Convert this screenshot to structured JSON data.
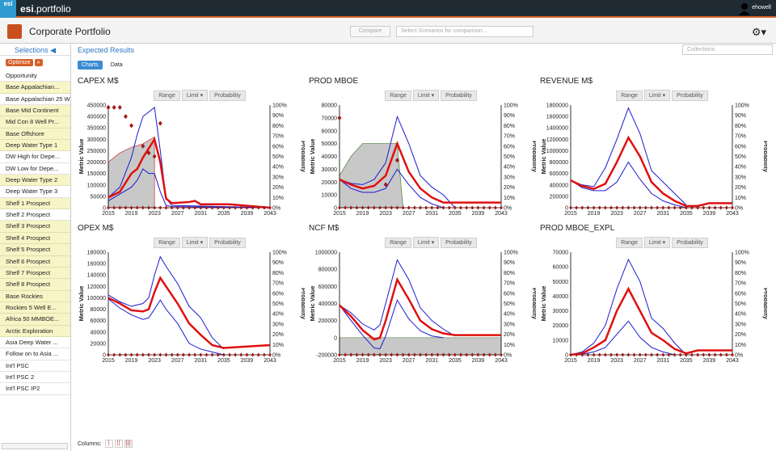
{
  "app": {
    "logo": "esi",
    "brand_bold": "esi",
    "brand": ".portfolio",
    "user": "ehowell"
  },
  "header": {
    "title": "Corporate Portfolio",
    "compare": "Compare",
    "scenario_placeholder": "Select Scenarios for comparison..."
  },
  "sidebar": {
    "title": "Selections",
    "optimize": "Optimize",
    "opportunity": "Opportunity",
    "items": [
      {
        "label": "Base Appalachian...",
        "sel": true
      },
      {
        "label": "Base Appalachian 25 W...",
        "sel": false
      },
      {
        "label": "Base Mid Continent",
        "sel": true
      },
      {
        "label": "Mid Con 8 Well Pr...",
        "sel": true
      },
      {
        "label": "Base Offshore",
        "sel": true
      },
      {
        "label": "Deep Water Type 1",
        "sel": true
      },
      {
        "label": "DW High for Depe...",
        "sel": false
      },
      {
        "label": "DW Low for Depe...",
        "sel": false
      },
      {
        "label": "Deep Water Type 2",
        "sel": true
      },
      {
        "label": "Deep Water Type 3",
        "sel": false
      },
      {
        "label": "Shelf 1 Prospect",
        "sel": true
      },
      {
        "label": "Shelf 2 Prospect",
        "sel": false
      },
      {
        "label": "Shelf 3 Prospect",
        "sel": true
      },
      {
        "label": "Shelf 4 Prospect",
        "sel": true
      },
      {
        "label": "Shelf 5 Prospect",
        "sel": true
      },
      {
        "label": "Shelf 6 Prospect",
        "sel": true
      },
      {
        "label": "Shelf 7 Prospect",
        "sel": true
      },
      {
        "label": "Shelf 8 Prospect",
        "sel": true
      },
      {
        "label": "Base Rockies",
        "sel": true
      },
      {
        "label": "Rockies 5 Well E...",
        "sel": true
      },
      {
        "label": "Africa 50 MMBOE...",
        "sel": true
      },
      {
        "label": "Arctic Exploration",
        "sel": true
      },
      {
        "label": "Asia Deep Water ...",
        "sel": false
      },
      {
        "label": "Follow on to Asia ...",
        "sel": false
      },
      {
        "label": "Int'l PSC",
        "sel": false
      },
      {
        "label": "Int'l PSC 2",
        "sel": false
      },
      {
        "label": "Int'l PSC IP2",
        "sel": false
      }
    ]
  },
  "main": {
    "title": "Expected Results",
    "collections": "Collections",
    "tabs": [
      "Charts",
      "Data"
    ],
    "columns_label": "Columns:"
  },
  "controls": {
    "range": "Range",
    "limit": "Limit",
    "probability": "Probability"
  },
  "axis": {
    "ylabel": "Metric Value",
    "y2label": "Probability"
  },
  "chart_data": [
    {
      "title": "CAPEX M$",
      "x": [
        2015,
        2019,
        2023,
        2027,
        2031,
        2035,
        2039,
        2043
      ],
      "yticks": [
        "0",
        "50000",
        "100000",
        "150000",
        "200000",
        "250000",
        "300000",
        "350000",
        "400000",
        "450000"
      ],
      "ymax": 450000,
      "ymin": 0,
      "mean": [
        [
          2015,
          45000
        ],
        [
          2017,
          70000
        ],
        [
          2019,
          150000
        ],
        [
          2020,
          170000
        ],
        [
          2021,
          220000
        ],
        [
          2022,
          260000
        ],
        [
          2023,
          300000
        ],
        [
          2024,
          200000
        ],
        [
          2025,
          40000
        ],
        [
          2026,
          20000
        ],
        [
          2029,
          25000
        ],
        [
          2030,
          30000
        ],
        [
          2031,
          15000
        ],
        [
          2036,
          15000
        ],
        [
          2043,
          0
        ]
      ],
      "p90": [
        [
          2015,
          45000
        ],
        [
          2017,
          90000
        ],
        [
          2019,
          220000
        ],
        [
          2020,
          320000
        ],
        [
          2021,
          400000
        ],
        [
          2022,
          420000
        ],
        [
          2023,
          440000
        ],
        [
          2024,
          250000
        ],
        [
          2025,
          40000
        ],
        [
          2026,
          10000
        ],
        [
          2043,
          0
        ]
      ],
      "p10": [
        [
          2015,
          30000
        ],
        [
          2017,
          60000
        ],
        [
          2019,
          90000
        ],
        [
          2020,
          120000
        ],
        [
          2021,
          170000
        ],
        [
          2022,
          150000
        ],
        [
          2023,
          150000
        ],
        [
          2024,
          70000
        ],
        [
          2025,
          10000
        ],
        [
          2026,
          5000
        ],
        [
          2043,
          0
        ]
      ],
      "area": [
        [
          2015,
          200000
        ],
        [
          2017,
          240000
        ],
        [
          2019,
          265000
        ],
        [
          2021,
          280000
        ],
        [
          2023,
          310000
        ]
      ],
      "points": [
        [
          2015,
          440000
        ],
        [
          2016,
          440000
        ],
        [
          2017,
          440000
        ],
        [
          2018,
          400000
        ],
        [
          2019,
          360000
        ],
        [
          2021,
          270000
        ],
        [
          2022,
          240000
        ],
        [
          2023,
          225000
        ],
        [
          2024,
          370000
        ]
      ]
    },
    {
      "title": "PROD MBOE",
      "x": [
        2015,
        2019,
        2023,
        2027,
        2031,
        2035,
        2039,
        2043
      ],
      "yticks": [
        "0",
        "10000",
        "20000",
        "30000",
        "40000",
        "50000",
        "60000",
        "70000",
        "80000"
      ],
      "ymax": 80000,
      "ymin": 0,
      "mean": [
        [
          2015,
          22000
        ],
        [
          2017,
          18000
        ],
        [
          2019,
          15000
        ],
        [
          2021,
          17000
        ],
        [
          2023,
          25000
        ],
        [
          2025,
          50000
        ],
        [
          2027,
          28000
        ],
        [
          2029,
          15000
        ],
        [
          2031,
          8000
        ],
        [
          2033,
          4000
        ],
        [
          2043,
          4000
        ]
      ],
      "p90": [
        [
          2015,
          22000
        ],
        [
          2017,
          19000
        ],
        [
          2019,
          18000
        ],
        [
          2021,
          22000
        ],
        [
          2023,
          35000
        ],
        [
          2025,
          71000
        ],
        [
          2027,
          50000
        ],
        [
          2029,
          25000
        ],
        [
          2031,
          16000
        ],
        [
          2033,
          10000
        ],
        [
          2035,
          0
        ]
      ],
      "p10": [
        [
          2015,
          22000
        ],
        [
          2017,
          15000
        ],
        [
          2019,
          12000
        ],
        [
          2021,
          12000
        ],
        [
          2023,
          15000
        ],
        [
          2025,
          30000
        ],
        [
          2027,
          18000
        ],
        [
          2029,
          8000
        ],
        [
          2031,
          3000
        ],
        [
          2033,
          0
        ]
      ],
      "area": [
        [
          2015,
          25000
        ],
        [
          2017,
          40000
        ],
        [
          2019,
          50000
        ],
        [
          2021,
          50000
        ],
        [
          2023,
          50000
        ],
        [
          2025,
          50000
        ],
        [
          2026,
          0
        ]
      ],
      "points": [
        [
          2015,
          70000
        ],
        [
          2023,
          18000
        ],
        [
          2025,
          37000
        ]
      ]
    },
    {
      "title": "REVENUE M$",
      "x": [
        2015,
        2019,
        2023,
        2027,
        2031,
        2035,
        2039,
        2043
      ],
      "yticks": [
        "0",
        "200000",
        "400000",
        "600000",
        "800000",
        "1000000",
        "1200000",
        "1400000",
        "1600000",
        "1800000"
      ],
      "ymax": 1800000,
      "ymin": 0,
      "mean": [
        [
          2015,
          480000
        ],
        [
          2017,
          380000
        ],
        [
          2019,
          330000
        ],
        [
          2021,
          420000
        ],
        [
          2023,
          800000
        ],
        [
          2025,
          1230000
        ],
        [
          2027,
          900000
        ],
        [
          2029,
          450000
        ],
        [
          2031,
          250000
        ],
        [
          2033,
          120000
        ],
        [
          2035,
          30000
        ],
        [
          2037,
          30000
        ],
        [
          2039,
          80000
        ],
        [
          2043,
          80000
        ]
      ],
      "p90": [
        [
          2015,
          480000
        ],
        [
          2017,
          400000
        ],
        [
          2019,
          370000
        ],
        [
          2021,
          700000
        ],
        [
          2023,
          1200000
        ],
        [
          2025,
          1750000
        ],
        [
          2027,
          1300000
        ],
        [
          2029,
          650000
        ],
        [
          2031,
          450000
        ],
        [
          2033,
          250000
        ],
        [
          2035,
          50000
        ]
      ],
      "p10": [
        [
          2015,
          480000
        ],
        [
          2017,
          350000
        ],
        [
          2019,
          300000
        ],
        [
          2021,
          300000
        ],
        [
          2023,
          450000
        ],
        [
          2025,
          800000
        ],
        [
          2027,
          500000
        ],
        [
          2029,
          250000
        ],
        [
          2031,
          120000
        ],
        [
          2033,
          50000
        ],
        [
          2035,
          0
        ]
      ],
      "area": [],
      "points": []
    },
    {
      "title": "OPEX M$",
      "x": [
        2015,
        2019,
        2023,
        2027,
        2031,
        2035,
        2039,
        2043
      ],
      "yticks": [
        "0",
        "20000",
        "40000",
        "60000",
        "80000",
        "100000",
        "120000",
        "140000",
        "160000",
        "180000"
      ],
      "ymax": 180000,
      "ymin": 0,
      "mean": [
        [
          2015,
          100000
        ],
        [
          2017,
          90000
        ],
        [
          2019,
          78000
        ],
        [
          2021,
          76000
        ],
        [
          2022,
          80000
        ],
        [
          2023,
          110000
        ],
        [
          2024,
          135000
        ],
        [
          2025,
          120000
        ],
        [
          2027,
          90000
        ],
        [
          2029,
          55000
        ],
        [
          2031,
          35000
        ],
        [
          2033,
          17000
        ],
        [
          2035,
          12000
        ],
        [
          2043,
          17000
        ]
      ],
      "p90": [
        [
          2015,
          105000
        ],
        [
          2017,
          93000
        ],
        [
          2019,
          85000
        ],
        [
          2021,
          90000
        ],
        [
          2022,
          100000
        ],
        [
          2023,
          140000
        ],
        [
          2024,
          172000
        ],
        [
          2025,
          155000
        ],
        [
          2027,
          125000
        ],
        [
          2029,
          85000
        ],
        [
          2031,
          65000
        ],
        [
          2033,
          30000
        ],
        [
          2035,
          10000
        ]
      ],
      "p10": [
        [
          2015,
          98000
        ],
        [
          2017,
          82000
        ],
        [
          2019,
          70000
        ],
        [
          2021,
          62000
        ],
        [
          2022,
          65000
        ],
        [
          2023,
          80000
        ],
        [
          2024,
          96000
        ],
        [
          2025,
          80000
        ],
        [
          2027,
          55000
        ],
        [
          2029,
          20000
        ],
        [
          2031,
          10000
        ],
        [
          2033,
          5000
        ],
        [
          2035,
          0
        ]
      ],
      "area": [],
      "points": []
    },
    {
      "title": "NCF M$",
      "x": [
        2015,
        2019,
        2023,
        2027,
        2031,
        2035,
        2039,
        2043
      ],
      "yticks": [
        "-200000",
        "0",
        "200000",
        "400000",
        "600000",
        "800000",
        "1000000"
      ],
      "ymax": 1000000,
      "ymin": -200000,
      "mean": [
        [
          2015,
          380000
        ],
        [
          2017,
          250000
        ],
        [
          2019,
          90000
        ],
        [
          2021,
          -20000
        ],
        [
          2022,
          0
        ],
        [
          2023,
          200000
        ],
        [
          2025,
          680000
        ],
        [
          2027,
          450000
        ],
        [
          2029,
          200000
        ],
        [
          2031,
          100000
        ],
        [
          2033,
          50000
        ],
        [
          2035,
          30000
        ],
        [
          2037,
          30000
        ],
        [
          2043,
          30000
        ]
      ],
      "p90": [
        [
          2015,
          380000
        ],
        [
          2017,
          290000
        ],
        [
          2019,
          160000
        ],
        [
          2021,
          90000
        ],
        [
          2022,
          150000
        ],
        [
          2023,
          400000
        ],
        [
          2025,
          910000
        ],
        [
          2027,
          680000
        ],
        [
          2029,
          350000
        ],
        [
          2031,
          200000
        ],
        [
          2033,
          100000
        ],
        [
          2035,
          20000
        ]
      ],
      "p10": [
        [
          2015,
          380000
        ],
        [
          2017,
          200000
        ],
        [
          2019,
          30000
        ],
        [
          2021,
          -120000
        ],
        [
          2022,
          -130000
        ],
        [
          2023,
          20000
        ],
        [
          2025,
          440000
        ],
        [
          2027,
          220000
        ],
        [
          2029,
          80000
        ],
        [
          2031,
          20000
        ],
        [
          2033,
          0
        ]
      ],
      "area": [
        [
          2015,
          0
        ],
        [
          2043,
          0
        ]
      ],
      "points": []
    },
    {
      "title": "PROD MBOE_EXPL",
      "x": [
        2015,
        2019,
        2023,
        2027,
        2031,
        2035,
        2039,
        2043
      ],
      "yticks": [
        "0",
        "10000",
        "20000",
        "30000",
        "40000",
        "50000",
        "60000",
        "70000"
      ],
      "ymax": 70000,
      "ymin": 0,
      "mean": [
        [
          2015,
          0
        ],
        [
          2017,
          1000
        ],
        [
          2019,
          5000
        ],
        [
          2021,
          10000
        ],
        [
          2023,
          30000
        ],
        [
          2025,
          45000
        ],
        [
          2027,
          30000
        ],
        [
          2029,
          15000
        ],
        [
          2031,
          10000
        ],
        [
          2033,
          4000
        ],
        [
          2035,
          1000
        ],
        [
          2037,
          3000
        ],
        [
          2043,
          3000
        ]
      ],
      "p90": [
        [
          2015,
          0
        ],
        [
          2017,
          2000
        ],
        [
          2019,
          8000
        ],
        [
          2021,
          20000
        ],
        [
          2023,
          45000
        ],
        [
          2025,
          65000
        ],
        [
          2027,
          50000
        ],
        [
          2029,
          25000
        ],
        [
          2031,
          18000
        ],
        [
          2033,
          8000
        ],
        [
          2035,
          0
        ]
      ],
      "p10": [
        [
          2015,
          0
        ],
        [
          2017,
          500
        ],
        [
          2019,
          2000
        ],
        [
          2021,
          5000
        ],
        [
          2023,
          14000
        ],
        [
          2025,
          23000
        ],
        [
          2027,
          12000
        ],
        [
          2029,
          5000
        ],
        [
          2031,
          2000
        ],
        [
          2033,
          0
        ]
      ],
      "area": [],
      "points": []
    }
  ],
  "yticks2": [
    "0%",
    "10%",
    "20%",
    "30%",
    "40%",
    "50%",
    "60%",
    "70%",
    "80%",
    "90%",
    "100%"
  ]
}
